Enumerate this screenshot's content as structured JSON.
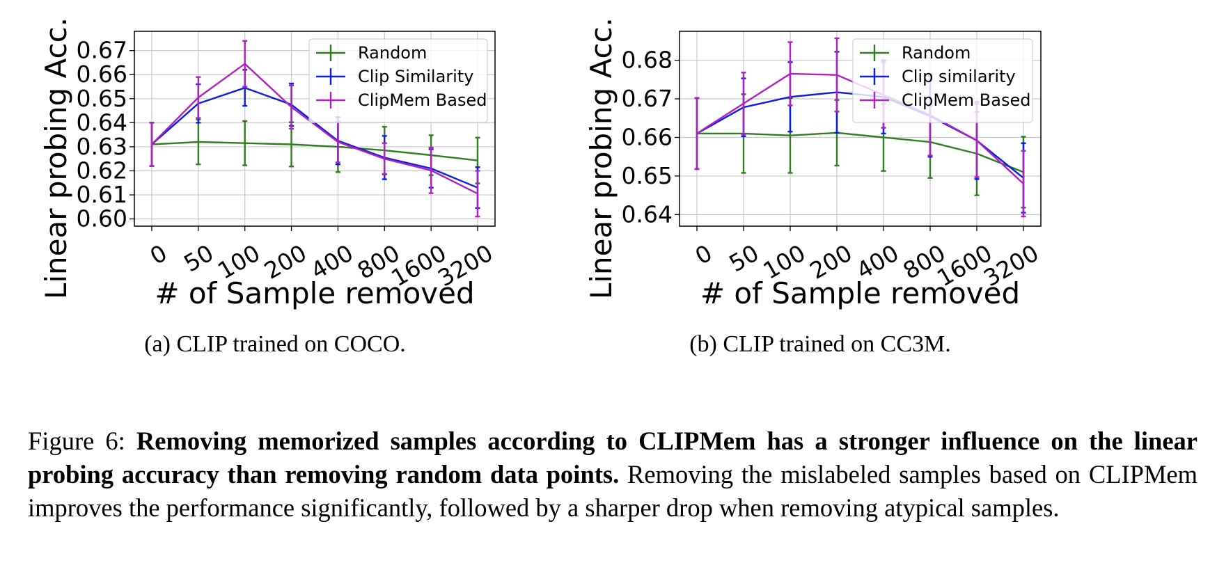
{
  "chart_data": [
    {
      "type": "line",
      "categories": [
        "0",
        "50",
        "100",
        "200",
        "400",
        "800",
        "1600",
        "3200"
      ],
      "xlabel": "# of Sample removed",
      "ylabel": "Linear probing Acc.",
      "ylim": [
        0.597,
        0.678
      ],
      "yticks": [
        "0.60",
        "0.61",
        "0.62",
        "0.63",
        "0.64",
        "0.65",
        "0.66",
        "0.67"
      ],
      "ytick_values": [
        0.6,
        0.61,
        0.62,
        0.63,
        0.64,
        0.65,
        0.66,
        0.67
      ],
      "grid": true,
      "legend_position": "top-right",
      "subcaption": "(a) CLIP trained on COCO.",
      "series": [
        {
          "name": "Random",
          "color": "#2e7d1f",
          "values": [
            0.631,
            0.632,
            0.6315,
            0.631,
            0.63,
            0.6285,
            0.6265,
            0.6243
          ],
          "errors": [
            0.009,
            0.0093,
            0.0092,
            0.0092,
            0.0105,
            0.0098,
            0.0083,
            0.0095
          ]
        },
        {
          "name": "Clip Similarity",
          "color": "#0a1de0",
          "values": [
            0.631,
            0.648,
            0.6545,
            0.6475,
            0.6325,
            0.6255,
            0.621,
            0.613
          ],
          "errors": [
            0.009,
            0.008,
            0.0075,
            0.0088,
            0.0098,
            0.009,
            0.008,
            0.0085
          ]
        },
        {
          "name": "ClipMem Based",
          "color": "#b01fc0",
          "values": [
            0.631,
            0.6505,
            0.6645,
            0.6465,
            0.632,
            0.625,
            0.6202,
            0.6105
          ],
          "errors": [
            0.009,
            0.0085,
            0.0095,
            0.009,
            0.0085,
            0.0065,
            0.0095,
            0.0095
          ]
        }
      ]
    },
    {
      "type": "line",
      "categories": [
        "0",
        "50",
        "100",
        "200",
        "400",
        "800",
        "1600",
        "3200"
      ],
      "xlabel": "# of Sample removed",
      "ylabel": "Linear probing Acc.",
      "ylim": [
        0.637,
        0.6875
      ],
      "yticks": [
        "0.64",
        "0.65",
        "0.66",
        "0.67",
        "0.68"
      ],
      "ytick_values": [
        0.64,
        0.65,
        0.66,
        0.67,
        0.68
      ],
      "grid": true,
      "legend_position": "top-right",
      "subcaption": "(b) CLIP trained on CC3M.",
      "series": [
        {
          "name": "Random",
          "color": "#2e7d1f",
          "values": [
            0.661,
            0.661,
            0.6605,
            0.6612,
            0.66,
            0.6588,
            0.6558,
            0.651
          ],
          "errors": [
            0.0092,
            0.0102,
            0.0097,
            0.0085,
            0.0087,
            0.0093,
            0.0108,
            0.0092
          ]
        },
        {
          "name": "Clip similarity",
          "color": "#0a1de0",
          "values": [
            0.661,
            0.6678,
            0.6705,
            0.6717,
            0.6705,
            0.6655,
            0.6592,
            0.6495
          ],
          "errors": [
            0.0092,
            0.0075,
            0.009,
            0.0105,
            0.0095,
            0.0105,
            0.01,
            0.009
          ]
        },
        {
          "name": "ClipMem Based",
          "color": "#b01fc0",
          "values": [
            0.661,
            0.6688,
            0.6765,
            0.6762,
            0.671,
            0.6658,
            0.6592,
            0.648
          ],
          "errors": [
            0.0092,
            0.008,
            0.0082,
            0.0095,
            0.0085,
            0.0105,
            0.0095,
            0.0085
          ]
        }
      ]
    }
  ],
  "caption": {
    "label": "Figure 6: ",
    "bold": "Removing memorized samples according to CLIPMem has a stronger influence on the linear probing accuracy than removing random data points.",
    "rest": " Removing the mislabeled samples based on CLIPMem improves the performance significantly, followed by a sharper drop when removing atypical samples."
  }
}
